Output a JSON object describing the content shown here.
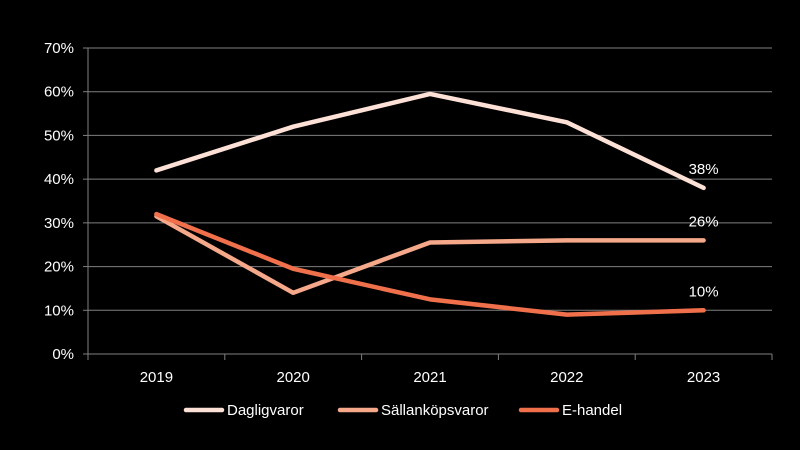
{
  "chart_data": {
    "type": "line",
    "x": [
      "2019",
      "2020",
      "2021",
      "2022",
      "2023"
    ],
    "series": [
      {
        "name": "Dagligvaror",
        "values": [
          42,
          52,
          59.5,
          53,
          38
        ],
        "color": "#fde0d6"
      },
      {
        "name": "Sällanköpsvaror",
        "values": [
          31.5,
          14,
          25.5,
          26,
          26
        ],
        "color": "#f5a88a"
      },
      {
        "name": "E-handel",
        "values": [
          32,
          19.5,
          12.5,
          9,
          10
        ],
        "color": "#f0704c"
      }
    ],
    "ylim": [
      0,
      70
    ],
    "yticks": [
      0,
      10,
      20,
      30,
      40,
      50,
      60,
      70
    ],
    "ytick_labels": [
      "0%",
      "10%",
      "20%",
      "30%",
      "40%",
      "50%",
      "60%",
      "70%"
    ],
    "data_labels": [
      {
        "series": 0,
        "index": 4,
        "text": "38%"
      },
      {
        "series": 1,
        "index": 4,
        "text": "26%"
      },
      {
        "series": 2,
        "index": 4,
        "text": "10%"
      }
    ],
    "grid": true,
    "legend": "bottom",
    "title": "",
    "xlabel": "",
    "ylabel": ""
  }
}
